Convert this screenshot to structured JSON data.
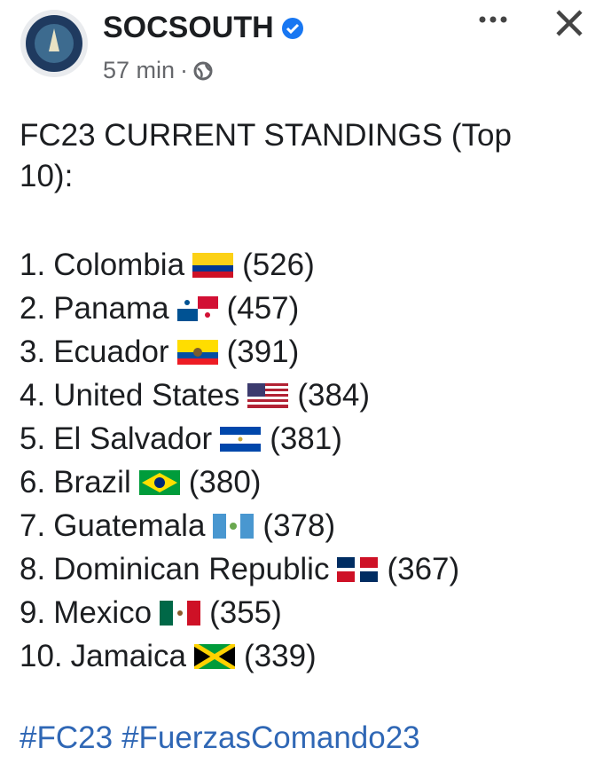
{
  "header": {
    "name": "SOCSOUTH",
    "time": "57 min",
    "separator": "·"
  },
  "post": {
    "title": "FC23 CURRENT STANDINGS (Top 10):",
    "standings": [
      {
        "rank": "1.",
        "country": "Colombia",
        "score": "(526)"
      },
      {
        "rank": "2.",
        "country": "Panama",
        "score": "(457)"
      },
      {
        "rank": "3.",
        "country": "Ecuador",
        "score": "(391)"
      },
      {
        "rank": "4.",
        "country": "United States",
        "score": "(384)"
      },
      {
        "rank": "5.",
        "country": "El Salvador",
        "score": "(381)"
      },
      {
        "rank": "6.",
        "country": "Brazil",
        "score": "(380)"
      },
      {
        "rank": "7.",
        "country": "Guatemala",
        "score": "(378)"
      },
      {
        "rank": "8.",
        "country": "Dominican Republic",
        "score": "(367)"
      },
      {
        "rank": "9.",
        "country": "Mexico",
        "score": "(355)"
      },
      {
        "rank": "10.",
        "country": "Jamaica",
        "score": "(339)"
      }
    ],
    "hashtags": [
      "#FC23",
      "#FuerzasComando23"
    ]
  }
}
